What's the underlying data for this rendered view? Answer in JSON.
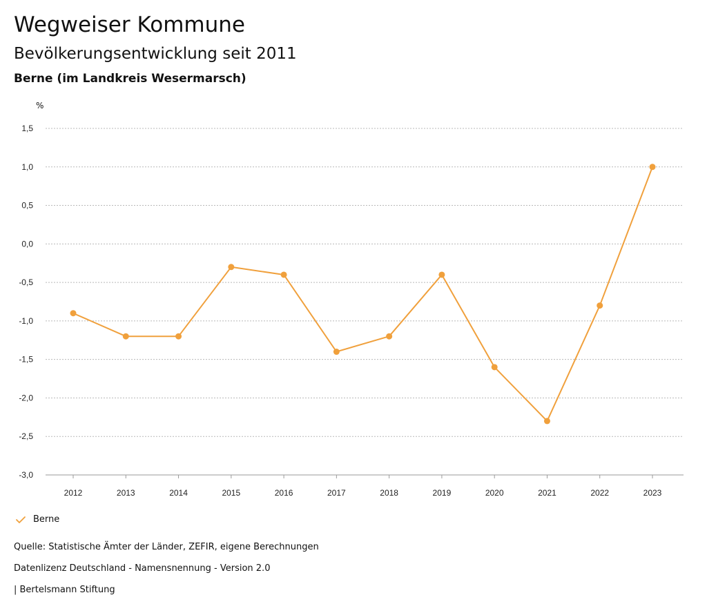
{
  "header": {
    "title": "Wegweiser Kommune",
    "subtitle": "Bevölkerungsentwicklung seit 2011",
    "region": "Berne (im Landkreis Wesermarsch)"
  },
  "chart_data": {
    "type": "line",
    "ylabel": "%",
    "ylim": [
      -3.0,
      1.5
    ],
    "yticks": [
      1.5,
      1.0,
      0.5,
      0.0,
      -0.5,
      -1.0,
      -1.5,
      -2.0,
      -2.5,
      -3.0
    ],
    "ytick_labels": [
      "1,5",
      "1,0",
      "0,5",
      "0,0",
      "-0,5",
      "-1,0",
      "-1,5",
      "-2,0",
      "-2,5",
      "-3,0"
    ],
    "categories": [
      "2012",
      "2013",
      "2014",
      "2015",
      "2016",
      "2017",
      "2018",
      "2019",
      "2020",
      "2021",
      "2022",
      "2023"
    ],
    "series": [
      {
        "name": "Berne",
        "color": "#f0a03c",
        "values": [
          -0.9,
          -1.2,
          -1.2,
          -0.3,
          -0.4,
          -1.4,
          -1.2,
          -0.4,
          -1.6,
          -2.3,
          -0.8,
          1.0
        ]
      }
    ],
    "grid": true,
    "legend_position": "bottom-left"
  },
  "legend": {
    "label": "Berne",
    "icon": "check-icon"
  },
  "footer": {
    "source": "Quelle: Statistische Ämter der Länder, ZEFIR, eigene Berechnungen",
    "license": "Datenlizenz Deutschland - Namensnennung - Version 2.0",
    "publisher": "| Bertelsmann Stiftung"
  }
}
